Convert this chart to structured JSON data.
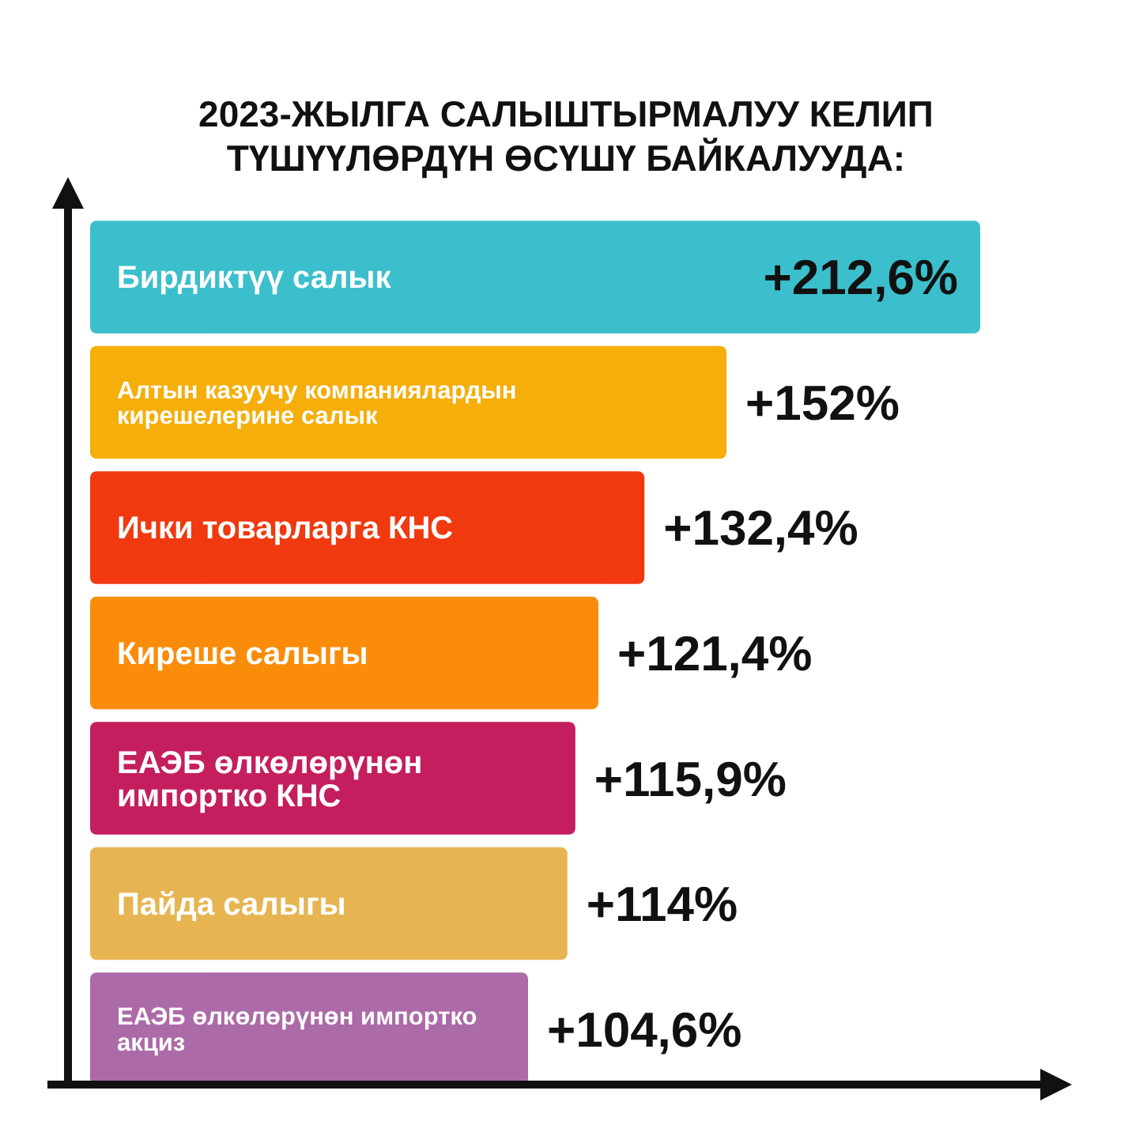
{
  "chart_data": {
    "type": "bar",
    "orientation": "horizontal",
    "title": "2023-ЖЫЛГА САЛЫШТЫРМАЛУУ КЕЛИП ТҮШҮҮЛӨРДҮН ӨСҮШҮ БАЙКАЛУУДА:",
    "categories": [
      "Бирдиктүү салык",
      "Алтын казуучу компаниялардын кирешелерине салык",
      "Ички товарларга КНС",
      "Киреше салыгы",
      "ЕАЭБ өлкөлөрүнөн импортко КНС",
      "Пайда салыгы",
      "ЕАЭБ өлкөлөрүнөн импортко акциз"
    ],
    "values": [
      212.6,
      152,
      132.4,
      121.4,
      115.9,
      114,
      104.6
    ],
    "value_labels": [
      "+212,6%",
      "+152%",
      "+132,4%",
      "+121,4%",
      "+115,9%",
      "+114%",
      "+104,6%"
    ],
    "colors": [
      "#3bbfcc",
      "#f5ae0a",
      "#f0390f",
      "#fb8c0a",
      "#c41e5f",
      "#e6b552",
      "#ac6aa8"
    ]
  }
}
